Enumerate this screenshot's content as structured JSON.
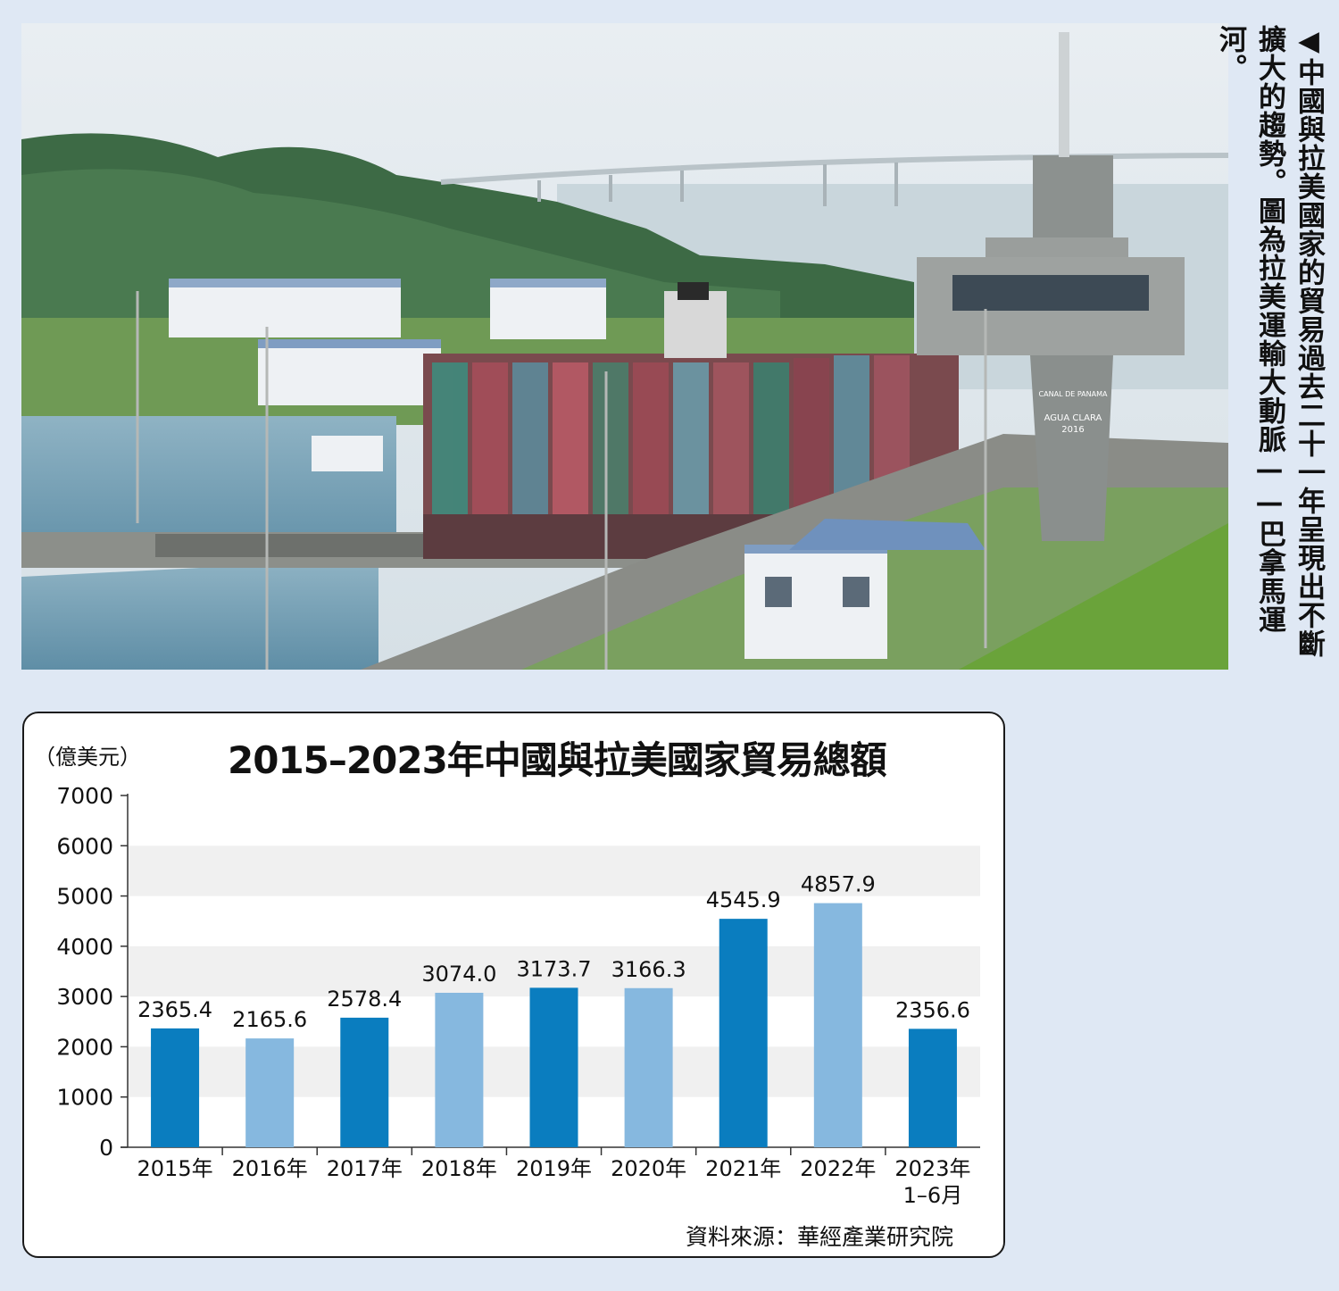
{
  "photo": {
    "alt": "Agua Clara locks, Panama Canal",
    "tower_sign_line1": "CANAL DE PANAMA",
    "tower_sign_line2": "AGUA CLARA",
    "tower_sign_line3": "2016"
  },
  "caption": "◀中國與拉美國家的貿易過去二十一年呈現出不斷擴大的趨勢。圖為拉美運輸大動脈——巴拿馬運河。",
  "chart": {
    "unit": "（億美元）",
    "title": "2015–2023年中國與拉美國家貿易總額",
    "source": "資料來源：華經產業研究院"
  },
  "chart_data": {
    "type": "bar",
    "title": "2015–2023年中國與拉美國家貿易總額",
    "ylabel": "（億美元）",
    "ylim": [
      0,
      7000
    ],
    "yticks": [
      0,
      1000,
      2000,
      3000,
      4000,
      5000,
      6000,
      7000
    ],
    "categories": [
      "2015年",
      "2016年",
      "2017年",
      "2018年",
      "2019年",
      "2020年",
      "2021年",
      "2022年",
      "2023年\n1–6月"
    ],
    "values": [
      2365.4,
      2165.6,
      2578.4,
      3074.0,
      3173.7,
      3166.3,
      4545.9,
      4857.9,
      2356.6
    ],
    "value_labels": [
      "2365.4",
      "2165.6",
      "2578.4",
      "3074.0",
      "3173.7",
      "3166.3",
      "4545.9",
      "4857.9",
      "2356.6"
    ],
    "bar_colors": [
      "#0a7dbf",
      "#86b8df",
      "#0a7dbf",
      "#86b8df",
      "#0a7dbf",
      "#86b8df",
      "#0a7dbf",
      "#86b8df",
      "#0a7dbf"
    ],
    "grid": "alternating bands",
    "band_color": "#f0f0f0",
    "legend": "none"
  }
}
